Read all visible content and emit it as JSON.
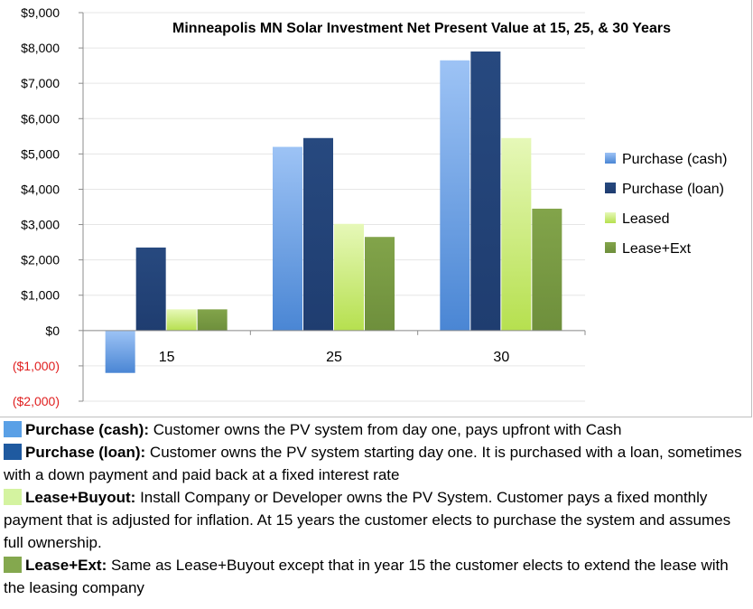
{
  "chart_data": {
    "type": "bar",
    "title": "Minneapolis MN Solar Investment Net Present Value at 15, 25, & 30 Years",
    "categories": [
      "15",
      "25",
      "30"
    ],
    "series": [
      {
        "name": "Purchase (cash)",
        "values": [
          -1200,
          5200,
          7650
        ],
        "color_top": "#9dc3f5",
        "color_bottom": "#4a86d4"
      },
      {
        "name": "Purchase (loan)",
        "values": [
          2350,
          5450,
          7900
        ],
        "color_top": "#27497f",
        "color_bottom": "#1f3d70"
      },
      {
        "name": "Leased",
        "values": [
          600,
          3020,
          5450
        ],
        "color_top": "#e6f8b8",
        "color_bottom": "#b6e04f"
      },
      {
        "name": "Lease+Ext",
        "values": [
          600,
          2650,
          3450
        ],
        "color_top": "#82a44a",
        "color_bottom": "#6e8f3c"
      }
    ],
    "ylim": [
      -2000,
      9000
    ],
    "yticks": [
      -2000,
      -1000,
      0,
      1000,
      2000,
      3000,
      4000,
      5000,
      6000,
      7000,
      8000,
      9000
    ],
    "ytick_labels": [
      "($2,000)",
      "($1,000)",
      "$0",
      "$1,000",
      "$2,000",
      "$3,000",
      "$4,000",
      "$5,000",
      "$6,000",
      "$7,000",
      "$8,000",
      "$9,000"
    ],
    "negative_label_color": "#e02020",
    "xlabel": "",
    "ylabel": "",
    "grid": true,
    "legend_position": "right"
  },
  "legend_notes": [
    {
      "color": "#5aa0e6",
      "term": "Purchase (cash):",
      "text": " Customer owns the PV system from day one, pays upfront with Cash"
    },
    {
      "color": "#1f5aa0",
      "term": "Purchase (loan):",
      "text": " Customer owns the PV system starting day one. It is purchased with a loan, sometimes with a down payment and paid back at a fixed interest rate"
    },
    {
      "color": "#d4f3a0",
      "term": "Lease+Buyout:",
      "text": " Install Company or Developer owns the PV System. Customer pays a fixed monthly payment that is adjusted for inflation. At 15 years the customer elects to purchase the system and assumes full ownership."
    },
    {
      "color": "#84a84e",
      "term": "Lease+Ext:",
      "text": " Same as Lease+Buyout except that in year 15 the customer elects to extend the lease with the leasing company"
    }
  ]
}
